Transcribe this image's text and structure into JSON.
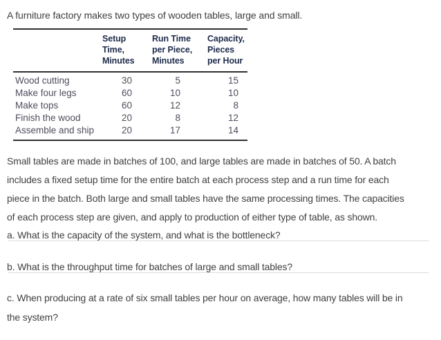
{
  "intro": "A furniture factory makes two types of wooden tables, large and small.",
  "table": {
    "headers": {
      "setup": [
        "Setup",
        "Time,",
        "Minutes"
      ],
      "run": [
        "Run Time",
        "per Piece,",
        "Minutes"
      ],
      "capacity": [
        "Capacity,",
        "Pieces",
        "per Hour"
      ]
    },
    "rows": [
      {
        "process": "Wood cutting",
        "setup": "30",
        "run": "5",
        "capacity": "15"
      },
      {
        "process": "Make four legs",
        "setup": "60",
        "run": "10",
        "capacity": "10"
      },
      {
        "process": "Make tops",
        "setup": "60",
        "run": "12",
        "capacity": "8"
      },
      {
        "process": "Finish the wood",
        "setup": "20",
        "run": "8",
        "capacity": "12"
      },
      {
        "process": "Assemble and ship",
        "setup": "20",
        "run": "17",
        "capacity": "14"
      }
    ]
  },
  "paragraph_lines": [
    "Small tables are made in batches of 100, and large tables are made in batches of 50. A batch",
    "includes a fixed setup time for the entire batch at each process step and a run time for each",
    "piece in the batch. Both large and small tables have the same processing times. The capacities",
    "of each process step are given, and apply to production of either type of table, as shown."
  ],
  "questions": {
    "a": "a. What is the capacity of the system, and what is the bottleneck?",
    "b": "b. What is the throughput time for batches of large and small tables?",
    "c_lines": [
      "c. When producing at a rate of six small tables per hour on average, how many tables will be in",
      "the system?"
    ]
  },
  "colors": {
    "body_text": "#3f3f3f",
    "table_header_text": "#1e2b4a",
    "table_body_text": "#4f4b5c",
    "table_rule": "#2e2e2e",
    "divider": "#dcdcdc"
  }
}
